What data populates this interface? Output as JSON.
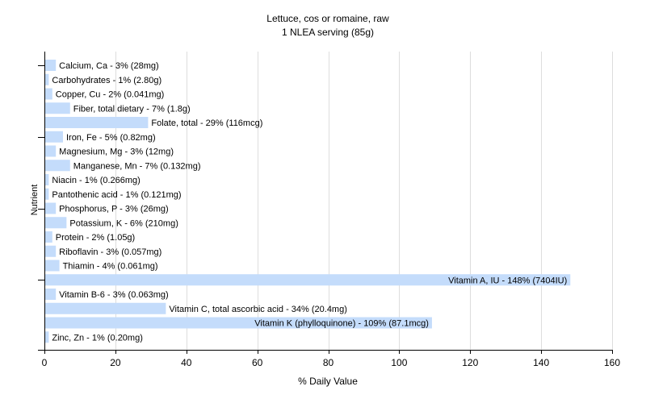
{
  "chart_data": {
    "type": "bar",
    "orientation": "horizontal",
    "title": "Lettuce, cos or romaine, raw",
    "subtitle": "1 NLEA serving (85g)",
    "xlabel": "% Daily Value",
    "ylabel": "Nutrient",
    "xlim": [
      0,
      160
    ],
    "xticks": [
      0,
      20,
      40,
      60,
      80,
      100,
      120,
      140,
      160
    ],
    "grid": true,
    "bar_color": "#c4dcfb",
    "grid_color": "#dddddd",
    "categories": [
      "Calcium, Ca",
      "Carbohydrates",
      "Copper, Cu",
      "Fiber, total dietary",
      "Folate, total",
      "Iron, Fe",
      "Magnesium, Mg",
      "Manganese, Mn",
      "Niacin",
      "Pantothenic acid",
      "Phosphorus, P",
      "Potassium, K",
      "Protein",
      "Riboflavin",
      "Thiamin",
      "Vitamin A, IU",
      "Vitamin B-6",
      "Vitamin C, total ascorbic acid",
      "Vitamin K (phylloquinone)",
      "Zinc, Zn"
    ],
    "values": [
      3,
      1,
      2,
      7,
      29,
      5,
      3,
      7,
      1,
      1,
      3,
      6,
      2,
      3,
      4,
      148,
      3,
      34,
      109,
      1
    ],
    "labels": [
      "Calcium, Ca - 3% (28mg)",
      "Carbohydrates - 1% (2.80g)",
      "Copper, Cu - 2% (0.041mg)",
      "Fiber, total dietary - 7% (1.8g)",
      "Folate, total - 29% (116mcg)",
      "Iron, Fe - 5% (0.82mg)",
      "Magnesium, Mg - 3% (12mg)",
      "Manganese, Mn - 7% (0.132mg)",
      "Niacin - 1% (0.266mg)",
      "Pantothenic acid - 1% (0.121mg)",
      "Phosphorus, P - 3% (26mg)",
      "Potassium, K - 6% (210mg)",
      "Protein - 2% (1.05g)",
      "Riboflavin - 3% (0.057mg)",
      "Thiamin - 4% (0.061mg)",
      "Vitamin A, IU - 148% (7404IU)",
      "Vitamin B-6 - 3% (0.063mg)",
      "Vitamin C, total ascorbic acid - 34% (20.4mg)",
      "Vitamin K (phylloquinone) - 109% (87.1mcg)",
      "Zinc, Zn - 1% (0.20mg)"
    ]
  }
}
